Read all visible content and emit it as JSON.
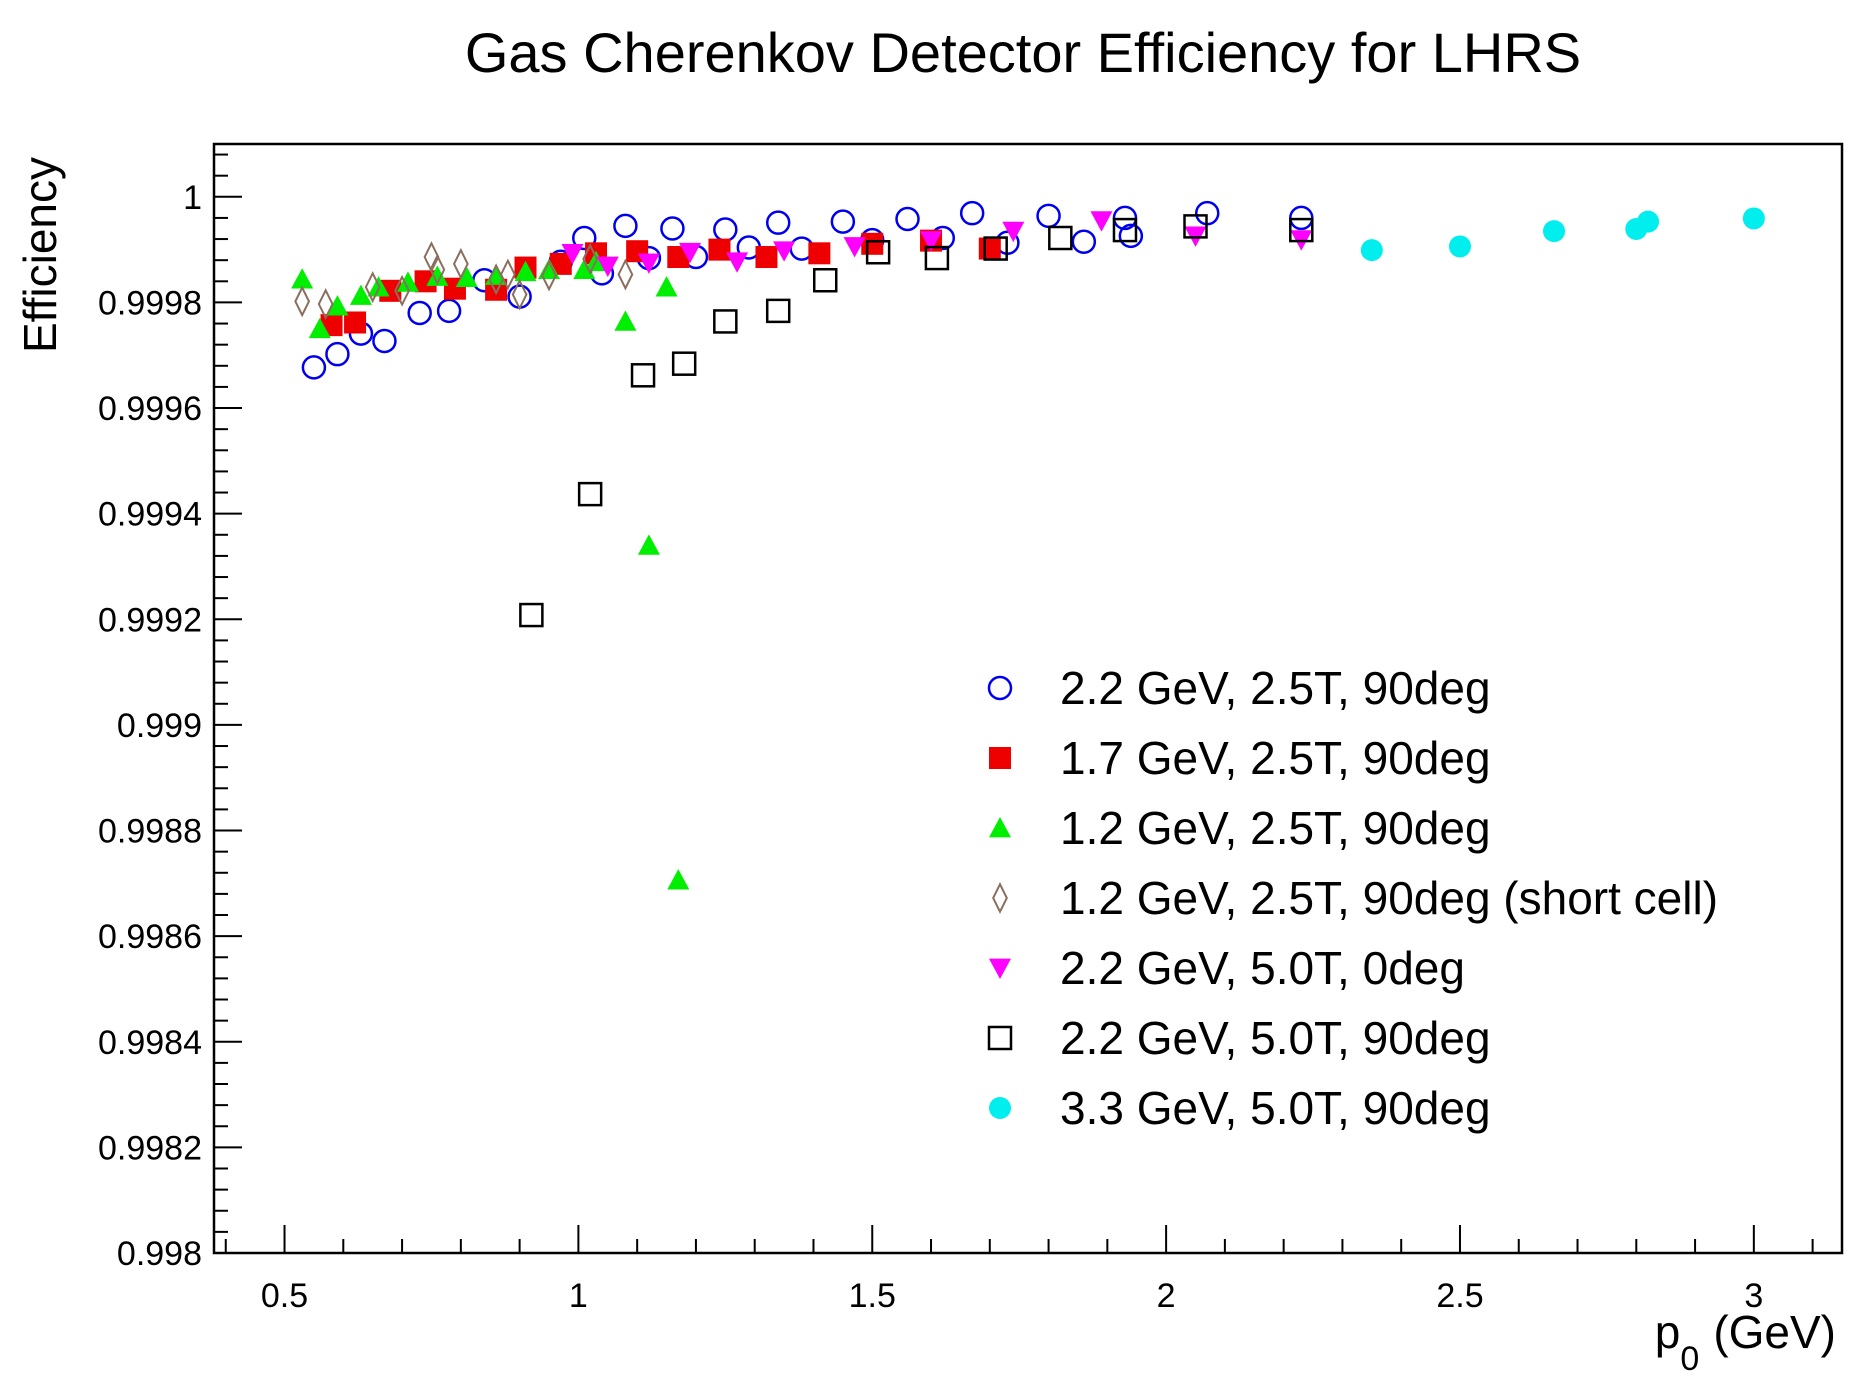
{
  "chart_data": {
    "type": "scatter",
    "title": "Gas Cherenkov Detector Efficiency for LHRS",
    "xlabel": "p",
    "xlabel_subscript": "0",
    "xlabel_unit": "(GeV)",
    "ylabel": "Efficiency",
    "xlim": [
      0.38,
      3.15
    ],
    "ylim": [
      0.998,
      1.0001
    ],
    "x_ticks": [
      "0.5",
      "1",
      "1.5",
      "2",
      "2.5",
      "3"
    ],
    "y_ticks": [
      "0.998",
      "0.9982",
      "0.9984",
      "0.9986",
      "0.9988",
      "0.999",
      "0.9992",
      "0.9994",
      "0.9996",
      "0.9998",
      "1"
    ],
    "legend_position": "bottom-right",
    "series": [
      {
        "name": "2.2 GeV, 2.5T, 90deg",
        "marker": "open-circle",
        "color": "#0000ee",
        "points": [
          [
            0.55,
            0.999677
          ],
          [
            0.59,
            0.999702
          ],
          [
            0.63,
            0.999741
          ],
          [
            0.67,
            0.999727
          ],
          [
            0.73,
            0.99978
          ],
          [
            0.78,
            0.999784
          ],
          [
            0.84,
            0.999842
          ],
          [
            0.9,
            0.999811
          ],
          [
            0.97,
            0.999877
          ],
          [
            1.01,
            0.999922
          ],
          [
            1.04,
            0.999855
          ],
          [
            1.08,
            0.999945
          ],
          [
            1.12,
            0.999884
          ],
          [
            1.16,
            0.99994
          ],
          [
            1.2,
            0.999886
          ],
          [
            1.25,
            0.999938
          ],
          [
            1.29,
            0.999904
          ],
          [
            1.34,
            0.999951
          ],
          [
            1.38,
            0.999902
          ],
          [
            1.45,
            0.999953
          ],
          [
            1.5,
            0.999918
          ],
          [
            1.56,
            0.999958
          ],
          [
            1.62,
            0.999922
          ],
          [
            1.67,
            0.999969
          ],
          [
            1.73,
            0.999913
          ],
          [
            1.8,
            0.999964
          ],
          [
            1.86,
            0.999915
          ],
          [
            1.93,
            0.99996
          ],
          [
            1.94,
            0.999926
          ],
          [
            2.07,
            0.999969
          ],
          [
            2.23,
            0.99996
          ]
        ]
      },
      {
        "name": "1.7 GeV, 2.5T, 90deg",
        "marker": "filled-square",
        "color": "#ee0000",
        "points": [
          [
            0.58,
            0.999757
          ],
          [
            0.62,
            0.999762
          ],
          [
            0.68,
            0.999822
          ],
          [
            0.74,
            0.99984
          ],
          [
            0.79,
            0.999826
          ],
          [
            0.86,
            0.999824
          ],
          [
            0.91,
            0.999866
          ],
          [
            0.97,
            0.999873
          ],
          [
            1.03,
            0.999893
          ],
          [
            1.1,
            0.999897
          ],
          [
            1.17,
            0.999886
          ],
          [
            1.24,
            0.9999
          ],
          [
            1.32,
            0.999886
          ],
          [
            1.41,
            0.999893
          ],
          [
            1.5,
            0.999911
          ],
          [
            1.6,
            0.999917
          ],
          [
            1.7,
            0.999902
          ]
        ]
      },
      {
        "name": "1.2 GeV, 2.5T, 90deg",
        "marker": "filled-triangle-up",
        "color": "#00ee00",
        "points": [
          [
            0.53,
            0.999844
          ],
          [
            0.56,
            0.99975
          ],
          [
            0.59,
            0.999793
          ],
          [
            0.63,
            0.999813
          ],
          [
            0.66,
            0.999829
          ],
          [
            0.71,
            0.999838
          ],
          [
            0.76,
            0.999849
          ],
          [
            0.81,
            0.999847
          ],
          [
            0.86,
            0.999851
          ],
          [
            0.91,
            0.999858
          ],
          [
            0.95,
            0.999862
          ],
          [
            1.01,
            0.999862
          ],
          [
            1.03,
            0.999877
          ],
          [
            1.08,
            0.999764
          ],
          [
            1.12,
            0.99934
          ],
          [
            1.15,
            0.999829
          ],
          [
            1.17,
            0.998706
          ]
        ]
      },
      {
        "name": "1.2 GeV, 2.5T, 90deg (short cell)",
        "marker": "open-diamond",
        "color": "#8b6f5e",
        "points": [
          [
            0.53,
            0.999802
          ],
          [
            0.57,
            0.999797
          ],
          [
            0.65,
            0.999829
          ],
          [
            0.7,
            0.999822
          ],
          [
            0.75,
            0.999886
          ],
          [
            0.76,
            0.999862
          ],
          [
            0.8,
            0.999873
          ],
          [
            0.86,
            0.999844
          ],
          [
            0.88,
            0.999853
          ],
          [
            0.9,
            0.999815
          ],
          [
            0.95,
            0.999851
          ],
          [
            1.02,
            0.999882
          ],
          [
            1.08,
            0.999853
          ]
        ]
      },
      {
        "name": "2.2 GeV, 5.0T, 0deg",
        "marker": "filled-triangle-down",
        "color": "#ff00ff",
        "points": [
          [
            0.99,
            0.999893
          ],
          [
            1.05,
            0.999869
          ],
          [
            1.12,
            0.999875
          ],
          [
            1.19,
            0.999895
          ],
          [
            1.27,
            0.999877
          ],
          [
            1.35,
            0.999898
          ],
          [
            1.47,
            0.999906
          ],
          [
            1.6,
            0.999917
          ],
          [
            1.74,
            0.999935
          ],
          [
            1.89,
            0.999955
          ],
          [
            2.05,
            0.999926
          ],
          [
            2.23,
            0.999919
          ]
        ]
      },
      {
        "name": "2.2 GeV, 5.0T, 90deg",
        "marker": "open-square",
        "color": "#000000",
        "points": [
          [
            0.92,
            0.999208
          ],
          [
            1.02,
            0.999437
          ],
          [
            1.11,
            0.999662
          ],
          [
            1.18,
            0.999684
          ],
          [
            1.25,
            0.999764
          ],
          [
            1.34,
            0.999784
          ],
          [
            1.42,
            0.999842
          ],
          [
            1.51,
            0.999895
          ],
          [
            1.61,
            0.999884
          ],
          [
            1.71,
            0.999902
          ],
          [
            1.82,
            0.999922
          ],
          [
            1.93,
            0.999937
          ],
          [
            2.05,
            0.999944
          ],
          [
            2.23,
            0.999937
          ]
        ]
      },
      {
        "name": "3.3 GeV, 5.0T, 90deg",
        "marker": "filled-circle",
        "color": "#00eeee",
        "points": [
          [
            2.35,
            0.999899
          ],
          [
            2.5,
            0.999906
          ],
          [
            2.66,
            0.999935
          ],
          [
            2.8,
            0.999939
          ],
          [
            2.82,
            0.999953
          ],
          [
            3.0,
            0.999959
          ]
        ]
      }
    ]
  }
}
